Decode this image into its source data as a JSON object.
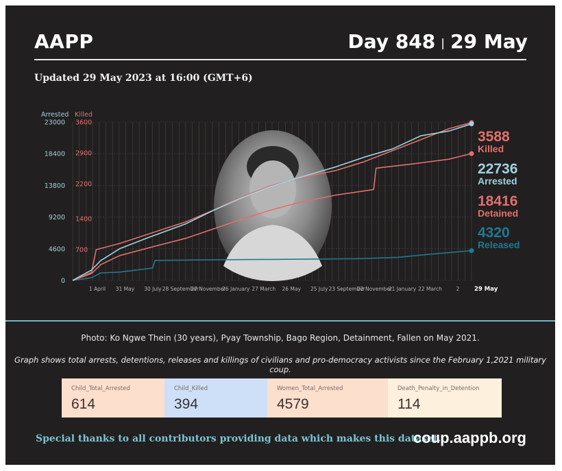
{
  "header": {
    "brand": "AAPP",
    "day_label": "Day 848",
    "separator": "|",
    "date_label": "29 May",
    "updated": "Updated 29 May 2023 at 16:00 (GMT+6)"
  },
  "colors": {
    "background": "#211f1f",
    "killed": "#e1706e",
    "detained": "#e1706e",
    "arrested": "#9fd3e0",
    "released": "#1f7a91",
    "divider": "#6fb7c6",
    "grid": "#4a4545"
  },
  "chart_data": {
    "type": "line",
    "left_axis": {
      "label": "Arrested",
      "ticks": [
        "0",
        "4600",
        "9200",
        "13800",
        "18400",
        "23000"
      ],
      "ylim": [
        0,
        23000
      ]
    },
    "right_axis": {
      "label": "Killed",
      "ticks": [
        "700",
        "1400",
        "2200",
        "2900",
        "3600"
      ],
      "ylim": [
        0,
        3600
      ]
    },
    "x_ticks": [
      "1 April",
      "31 May",
      "30 July",
      "28 September",
      "27 November",
      "26 January",
      "27 March",
      "26 May",
      "25 July",
      "23 September",
      "22 November",
      "21 January",
      "22 March",
      "2",
      "29 May"
    ],
    "x_range_days": [
      0,
      848
    ],
    "series": [
      {
        "name": "Arrested",
        "axis": "left",
        "value_label": "22736",
        "text_label": "Arrested",
        "points": [
          [
            0,
            0
          ],
          [
            40,
            1500
          ],
          [
            60,
            2900
          ],
          [
            100,
            4600
          ],
          [
            160,
            6200
          ],
          [
            240,
            8200
          ],
          [
            300,
            10200
          ],
          [
            360,
            12000
          ],
          [
            420,
            13600
          ],
          [
            480,
            14900
          ],
          [
            560,
            16500
          ],
          [
            620,
            17900
          ],
          [
            680,
            19100
          ],
          [
            740,
            21000
          ],
          [
            800,
            21700
          ],
          [
            848,
            22736
          ]
        ]
      },
      {
        "name": "Killed",
        "axis": "right",
        "value_label": "3588",
        "text_label": "Killed",
        "points": [
          [
            0,
            0
          ],
          [
            40,
            180
          ],
          [
            50,
            700
          ],
          [
            100,
            840
          ],
          [
            160,
            1050
          ],
          [
            240,
            1330
          ],
          [
            300,
            1600
          ],
          [
            360,
            1900
          ],
          [
            420,
            2150
          ],
          [
            480,
            2320
          ],
          [
            560,
            2500
          ],
          [
            620,
            2700
          ],
          [
            680,
            2950
          ],
          [
            740,
            3200
          ],
          [
            800,
            3450
          ],
          [
            848,
            3588
          ]
        ]
      },
      {
        "name": "Detained",
        "axis": "left",
        "value_label": "18416",
        "text_label": "Detained",
        "points": [
          [
            0,
            0
          ],
          [
            40,
            1000
          ],
          [
            60,
            2300
          ],
          [
            100,
            3600
          ],
          [
            160,
            4700
          ],
          [
            240,
            6100
          ],
          [
            300,
            7500
          ],
          [
            360,
            8900
          ],
          [
            420,
            10200
          ],
          [
            480,
            11300
          ],
          [
            560,
            12400
          ],
          [
            640,
            13200
          ],
          [
            645,
            16300
          ],
          [
            720,
            16900
          ],
          [
            800,
            17600
          ],
          [
            848,
            18416
          ]
        ]
      },
      {
        "name": "Released",
        "axis": "left",
        "value_label": "4320",
        "text_label": "Released",
        "points": [
          [
            0,
            0
          ],
          [
            40,
            400
          ],
          [
            60,
            1100
          ],
          [
            100,
            1200
          ],
          [
            170,
            1800
          ],
          [
            175,
            2900
          ],
          [
            300,
            3000
          ],
          [
            420,
            3050
          ],
          [
            500,
            3100
          ],
          [
            600,
            3150
          ],
          [
            690,
            3350
          ],
          [
            760,
            3800
          ],
          [
            848,
            4320
          ]
        ]
      }
    ]
  },
  "caption": {
    "photo": "Photo: Ko Ngwe Thein (30 years), Pyay Township, Bago Region, Detainment, Fallen on May 2021.",
    "graph_note": "Graph shows total arrests, detentions, releases and killings of civilians and pro-democracy activists since the February 1,2021 military coup."
  },
  "stats": [
    {
      "label": "Child_Total_Arrested",
      "value": "614"
    },
    {
      "label": "Child_Killed",
      "value": "394"
    },
    {
      "label": "Women_Total_Arrested",
      "value": "4579"
    },
    {
      "label": "Death_Penalty_in_Detention",
      "value": "114"
    }
  ],
  "footer": {
    "thanks": "Special thanks to all contributors providing data which makes this dataset.",
    "site": "coup.aappb.org"
  }
}
